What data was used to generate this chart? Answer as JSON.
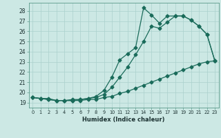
{
  "xlabel": "Humidex (Indice chaleur)",
  "ylabel": "",
  "background_color": "#cce8e4",
  "grid_color": "#aad0cc",
  "line_color": "#1a6b5a",
  "marker": "D",
  "markersize": 2.5,
  "linewidth": 0.9,
  "xlim": [
    -0.5,
    23.5
  ],
  "ylim": [
    18.5,
    28.8
  ],
  "yticks": [
    19,
    20,
    21,
    22,
    23,
    24,
    25,
    26,
    27,
    28
  ],
  "xticks": [
    0,
    1,
    2,
    3,
    4,
    5,
    6,
    7,
    8,
    9,
    10,
    11,
    12,
    13,
    14,
    15,
    16,
    17,
    18,
    19,
    20,
    21,
    22,
    23
  ],
  "line1_x": [
    0,
    1,
    2,
    3,
    4,
    5,
    6,
    7,
    8,
    9,
    10,
    11,
    12,
    13,
    14,
    15,
    16,
    17,
    18,
    19,
    20,
    21,
    22,
    23
  ],
  "line1_y": [
    19.5,
    19.4,
    19.4,
    19.2,
    19.2,
    19.2,
    19.2,
    19.3,
    19.3,
    19.5,
    19.6,
    19.9,
    20.1,
    20.4,
    20.7,
    21.0,
    21.3,
    21.6,
    21.9,
    22.2,
    22.5,
    22.8,
    23.0,
    23.1
  ],
  "line2_x": [
    0,
    1,
    2,
    3,
    4,
    5,
    6,
    7,
    8,
    9,
    10,
    11,
    12,
    13,
    14,
    15,
    16,
    17,
    18,
    19,
    20,
    21,
    22,
    23
  ],
  "line2_y": [
    19.5,
    19.4,
    19.3,
    19.2,
    19.2,
    19.2,
    19.3,
    19.4,
    19.5,
    19.8,
    20.5,
    21.5,
    22.5,
    23.7,
    25.0,
    26.5,
    26.3,
    26.9,
    27.5,
    27.5,
    27.1,
    26.5,
    25.7,
    23.1
  ],
  "line3_x": [
    0,
    1,
    2,
    3,
    4,
    5,
    6,
    7,
    8,
    9,
    10,
    11,
    12,
    13,
    14,
    15,
    16,
    17,
    18,
    19,
    20,
    21,
    22,
    23
  ],
  "line3_y": [
    19.5,
    19.4,
    19.3,
    19.2,
    19.2,
    19.3,
    19.3,
    19.4,
    19.6,
    20.2,
    21.5,
    23.2,
    23.8,
    24.4,
    28.3,
    27.6,
    26.8,
    27.5,
    27.5,
    27.5,
    27.1,
    26.5,
    25.7,
    23.1
  ]
}
